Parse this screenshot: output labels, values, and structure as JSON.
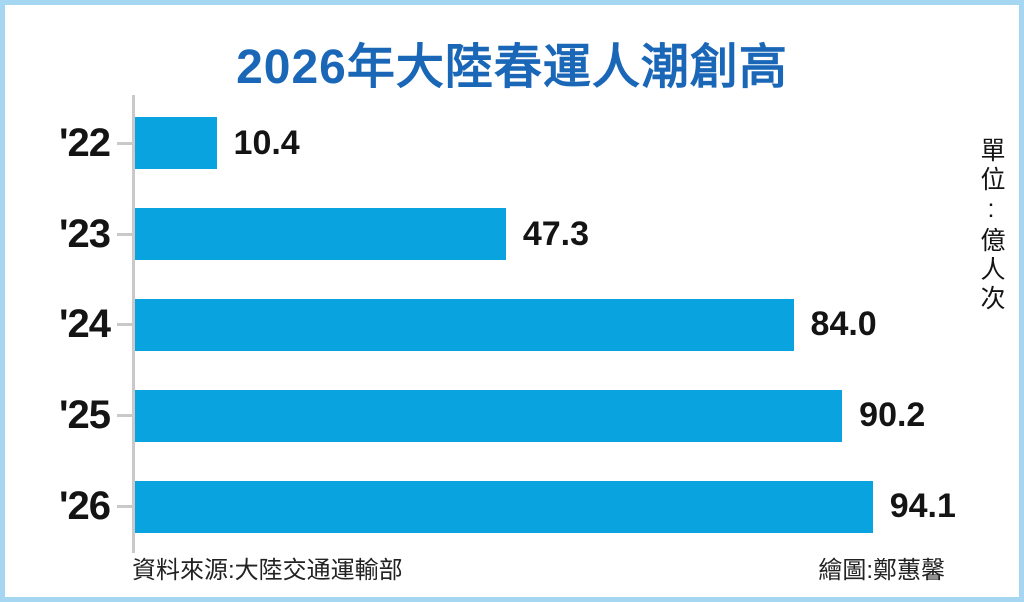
{
  "title": "2026年大陸春運人潮創高",
  "unit_label": "單位:億人次",
  "footer": {
    "source": "資料來源:大陸交通運輸部",
    "credit": "繪圖:鄭蕙馨"
  },
  "colors": {
    "bar": "#09a3e0",
    "title": "#1a67b8",
    "frame": "#a5d7f3",
    "axis": "#c9c9c9",
    "ink": "#141414"
  },
  "chart_data": {
    "type": "bar",
    "orientation": "horizontal",
    "title": "2026年大陸春運人潮創高",
    "unit": "億人次",
    "categories": [
      "'22",
      "'23",
      "'24",
      "'25",
      "'26"
    ],
    "values": [
      10.4,
      47.3,
      84.0,
      90.2,
      94.1
    ],
    "value_labels": [
      "10.4",
      "47.3",
      "84.0",
      "90.2",
      "94.1"
    ],
    "xlim": [
      0,
      100
    ],
    "grid": false,
    "legend": false,
    "source": "資料來源:大陸交通運輸部",
    "credit": "繪圖:鄭蕙馨"
  }
}
